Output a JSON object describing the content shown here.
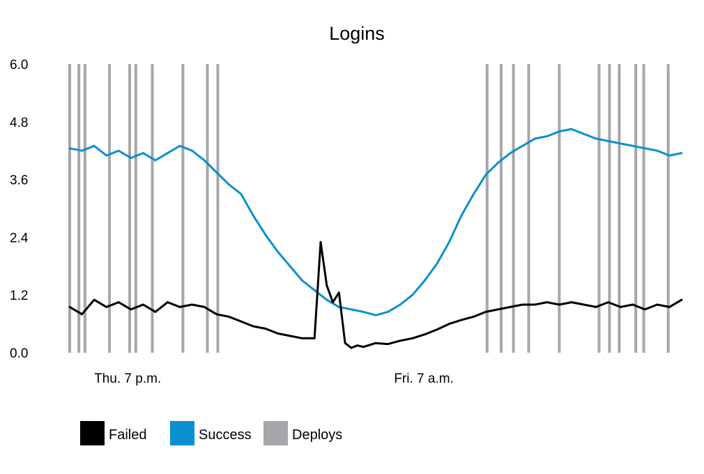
{
  "chart_data": {
    "type": "line",
    "title": "Logins",
    "xlabel": "",
    "ylabel": "",
    "ylim": [
      0,
      6.0
    ],
    "yticks": [
      "0.0",
      "1.2",
      "2.4",
      "3.6",
      "4.8",
      "6.0"
    ],
    "xlim": [
      0,
      100
    ],
    "xtick_labels": [
      {
        "label": "Thu. 7 p.m.",
        "x": 4
      },
      {
        "label": "Fri. 7 a.m.",
        "x": 53
      }
    ],
    "grid": false,
    "legend_position": "bottom-left",
    "legend": [
      {
        "name": "Failed",
        "color": "#000000"
      },
      {
        "name": "Success",
        "color": "#0a8fd0"
      },
      {
        "name": "Deploys",
        "color": "#a6a6ab"
      }
    ],
    "series": [
      {
        "name": "Success",
        "color": "#0a8fd0",
        "x": [
          0,
          2,
          4,
          6,
          8,
          10,
          12,
          14,
          16,
          18,
          20,
          22,
          24,
          26,
          28,
          30,
          32,
          34,
          36,
          38,
          40,
          42,
          44,
          46,
          48,
          50,
          52,
          54,
          56,
          58,
          60,
          62,
          64,
          66,
          68,
          70,
          72,
          74,
          76,
          78,
          80,
          82,
          84,
          86,
          88,
          90,
          92,
          94,
          96,
          98,
          100
        ],
        "values": [
          4.25,
          4.2,
          4.3,
          4.1,
          4.2,
          4.05,
          4.15,
          4.0,
          4.15,
          4.3,
          4.2,
          4.0,
          3.75,
          3.5,
          3.3,
          2.85,
          2.45,
          2.1,
          1.8,
          1.5,
          1.3,
          1.1,
          0.95,
          0.9,
          0.85,
          0.78,
          0.85,
          1.0,
          1.2,
          1.5,
          1.85,
          2.3,
          2.85,
          3.3,
          3.7,
          3.95,
          4.15,
          4.3,
          4.45,
          4.5,
          4.6,
          4.65,
          4.55,
          4.45,
          4.4,
          4.35,
          4.3,
          4.25,
          4.2,
          4.1,
          4.15
        ]
      },
      {
        "name": "Failed",
        "color": "#000000",
        "x": [
          0,
          2,
          4,
          6,
          8,
          10,
          12,
          14,
          16,
          18,
          20,
          22,
          24,
          26,
          28,
          30,
          32,
          34,
          36,
          38,
          40,
          41,
          42,
          43,
          44,
          45,
          46,
          47,
          48,
          50,
          52,
          54,
          56,
          58,
          60,
          62,
          64,
          66,
          68,
          70,
          72,
          74,
          76,
          78,
          80,
          82,
          84,
          86,
          88,
          90,
          92,
          94,
          96,
          98,
          100
        ],
        "values": [
          0.95,
          0.8,
          1.1,
          0.95,
          1.05,
          0.9,
          1.0,
          0.85,
          1.05,
          0.95,
          1.0,
          0.95,
          0.8,
          0.75,
          0.65,
          0.55,
          0.5,
          0.4,
          0.35,
          0.3,
          0.3,
          2.3,
          1.4,
          1.05,
          1.25,
          0.2,
          0.1,
          0.15,
          0.12,
          0.2,
          0.18,
          0.25,
          0.3,
          0.38,
          0.48,
          0.6,
          0.68,
          0.75,
          0.85,
          0.9,
          0.95,
          1.0,
          1.0,
          1.05,
          1.0,
          1.05,
          1.0,
          0.95,
          1.05,
          0.95,
          1.0,
          0.9,
          1.0,
          0.95,
          1.1
        ]
      }
    ],
    "deploys_x": [
      0,
      1.5,
      2.5,
      6.5,
      9.8,
      10.8,
      13.5,
      18.5,
      22.5,
      24.2,
      68.2,
      70.5,
      72.5,
      75.0,
      80.0,
      86.5,
      88.2,
      89.8,
      92.5,
      93.8,
      97.8
    ]
  }
}
